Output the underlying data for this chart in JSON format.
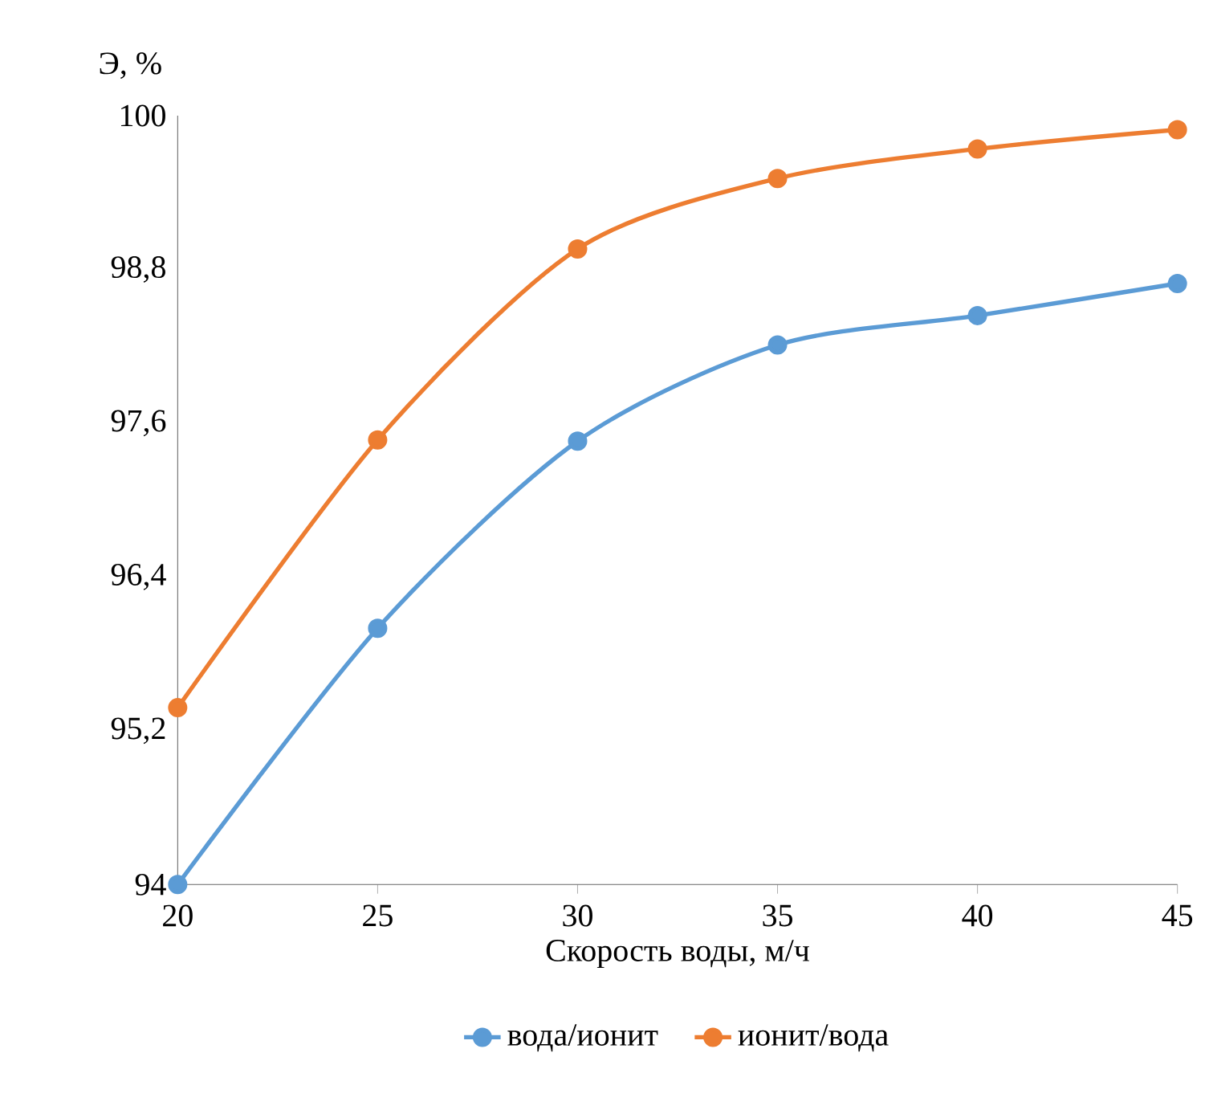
{
  "chart_data": {
    "type": "line",
    "xlabel": "Скорость воды, м/ч",
    "ylabel": "Э, %",
    "x": [
      20,
      25,
      30,
      35,
      40,
      45
    ],
    "series": [
      {
        "name": "вода/ионит",
        "color": "#5b9bd5",
        "values": [
          94.0,
          96.0,
          97.46,
          98.21,
          98.44,
          98.69
        ]
      },
      {
        "name": "ионит/вода",
        "color": "#ed7d31",
        "values": [
          95.38,
          97.47,
          98.96,
          99.51,
          99.74,
          99.89
        ]
      }
    ],
    "xlim": [
      20,
      45
    ],
    "xticks": [
      20,
      25,
      30,
      35,
      40,
      45
    ],
    "ylim": [
      94,
      100
    ],
    "yticks": [
      94,
      {
        "value": 95.2,
        "label": "95,2"
      },
      {
        "value": 96.4,
        "label": "96,4"
      },
      {
        "value": 97.6,
        "label": "97,6"
      },
      {
        "value": 98.8,
        "label": "98,8"
      },
      100
    ],
    "grid": false,
    "legend": "bottom",
    "marker": "circle",
    "line_style": "solid"
  }
}
